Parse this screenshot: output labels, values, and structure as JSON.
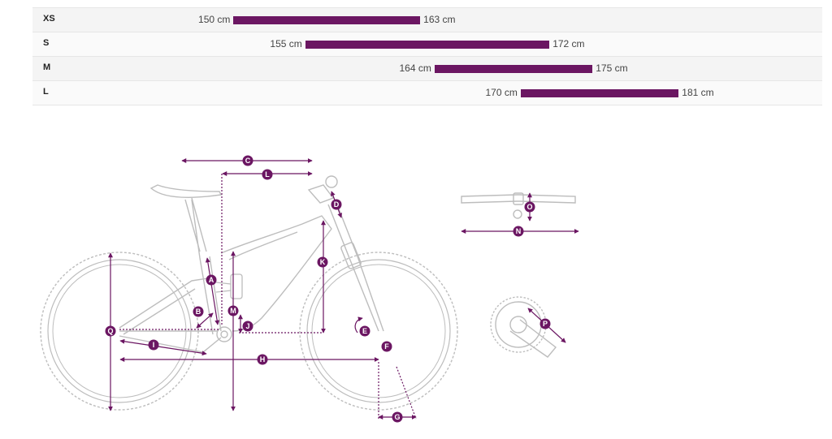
{
  "size_chart": {
    "rows": [
      {
        "size": "XS",
        "min_cm": 150,
        "max_cm": 163,
        "min_label": "150 cm",
        "max_label": "163 cm"
      },
      {
        "size": "S",
        "min_cm": 155,
        "max_cm": 172,
        "min_label": "155 cm",
        "max_label": "172 cm"
      },
      {
        "size": "M",
        "min_cm": 164,
        "max_cm": 175,
        "min_label": "164 cm",
        "max_label": "175 cm"
      },
      {
        "size": "L",
        "min_cm": 170,
        "max_cm": 181,
        "min_label": "170 cm",
        "max_label": "181 cm"
      }
    ],
    "bar_color": "#6b1662"
  },
  "diagram": {
    "accent_color": "#6b1662",
    "frame_color": "#c8c8c8",
    "markers": {
      "A": "A",
      "B": "B",
      "C": "C",
      "D": "D",
      "E": "E",
      "F": "F",
      "G": "G",
      "H": "H",
      "I": "I",
      "J": "J",
      "K": "K",
      "L": "L",
      "M": "M",
      "N": "N",
      "O": "O",
      "P": "P",
      "Q": "Q"
    },
    "parts": [
      "rear-wheel",
      "front-wheel",
      "frame",
      "saddle",
      "seatpost",
      "stem",
      "fork",
      "rear-shock",
      "handlebar",
      "crankset"
    ]
  }
}
